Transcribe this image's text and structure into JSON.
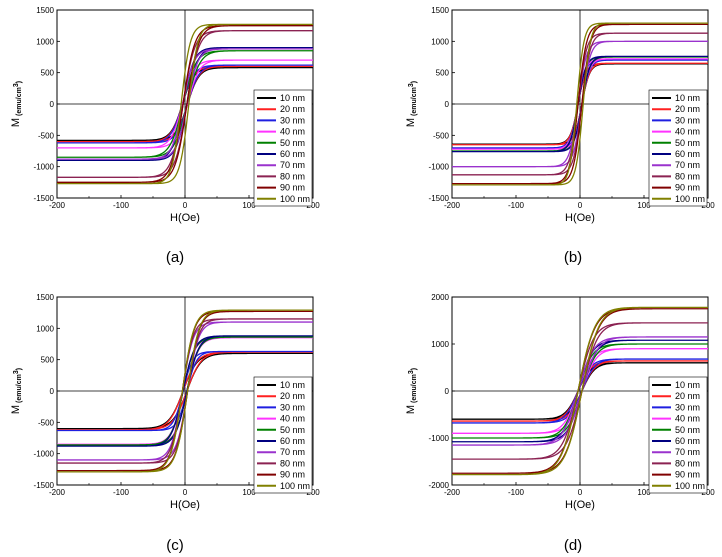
{
  "figure": {
    "colors": {
      "10 nm": "#000000",
      "20 nm": "#ff2020",
      "30 nm": "#1f1fe0",
      "40 nm": "#ff33ff",
      "50 nm": "#008000",
      "60 nm": "#000080",
      "70 nm": "#9a32cd",
      "80 nm": "#8b2252",
      "90 nm": "#800000",
      "100 nm": "#808000"
    }
  },
  "chart_data": [
    {
      "type": "line",
      "panel_label": "(a)",
      "xlabel": "H(Oe)",
      "ylabel": "M",
      "ylabel_unit": "(emu/cm",
      "ylabel_unit_sup": "3",
      "ylabel_unit_end": ")",
      "xlim": [
        -200,
        200
      ],
      "ylim": [
        -1500,
        1500
      ],
      "xticks": [
        -200,
        -100,
        0,
        100,
        200
      ],
      "yticks": [
        -1500,
        -1000,
        -500,
        0,
        500,
        1000,
        1500
      ],
      "legend_position": "bottom-right",
      "series": [
        {
          "name": "10 nm",
          "ms": 580,
          "hc": 4,
          "w": 18
        },
        {
          "name": "20 nm",
          "ms": 600,
          "hc": 4,
          "w": 18
        },
        {
          "name": "30 nm",
          "ms": 620,
          "hc": 4,
          "w": 18
        },
        {
          "name": "40 nm",
          "ms": 700,
          "hc": 4,
          "w": 18
        },
        {
          "name": "50 nm",
          "ms": 850,
          "hc": 3,
          "w": 20
        },
        {
          "name": "60 nm",
          "ms": 900,
          "hc": 3,
          "w": 17
        },
        {
          "name": "70 nm",
          "ms": 880,
          "hc": 3,
          "w": 17
        },
        {
          "name": "80 nm",
          "ms": 1170,
          "hc": 3,
          "w": 18
        },
        {
          "name": "90 nm",
          "ms": 1250,
          "hc": 3,
          "w": 18
        },
        {
          "name": "100 nm",
          "ms": 1270,
          "hc": 6,
          "w": 14
        }
      ]
    },
    {
      "type": "line",
      "panel_label": "(b)",
      "xlabel": "H(Oe)",
      "ylabel": "M",
      "ylabel_unit": "(emu/cm",
      "ylabel_unit_sup": "3",
      "ylabel_unit_end": ")",
      "xlim": [
        -200,
        200
      ],
      "ylim": [
        -1500,
        1500
      ],
      "xticks": [
        -200,
        -100,
        0,
        100,
        200
      ],
      "yticks": [
        -1500,
        -1000,
        -500,
        0,
        500,
        1000,
        1500
      ],
      "legend_position": "bottom-right",
      "series": [
        {
          "name": "10 nm",
          "ms": 640,
          "hc": 3,
          "w": 12
        },
        {
          "name": "20 nm",
          "ms": 650,
          "hc": 3,
          "w": 12
        },
        {
          "name": "30 nm",
          "ms": 700,
          "hc": 3,
          "w": 12
        },
        {
          "name": "40 nm",
          "ms": 720,
          "hc": 3,
          "w": 12
        },
        {
          "name": "50 nm",
          "ms": 750,
          "hc": 3,
          "w": 12
        },
        {
          "name": "60 nm",
          "ms": 760,
          "hc": 3,
          "w": 12
        },
        {
          "name": "70 nm",
          "ms": 1000,
          "hc": 3,
          "w": 13
        },
        {
          "name": "80 nm",
          "ms": 1130,
          "hc": 3,
          "w": 13
        },
        {
          "name": "90 nm",
          "ms": 1270,
          "hc": 3,
          "w": 13
        },
        {
          "name": "100 nm",
          "ms": 1290,
          "hc": 5,
          "w": 11
        }
      ]
    },
    {
      "type": "line",
      "panel_label": "(c)",
      "xlabel": "H(Oe)",
      "ylabel": "M",
      "ylabel_unit": "(emu/cm",
      "ylabel_unit_sup": "3",
      "ylabel_unit_end": ")",
      "xlim": [
        -200,
        200
      ],
      "ylim": [
        -1500,
        1500
      ],
      "xticks": [
        -200,
        -100,
        0,
        100,
        200
      ],
      "yticks": [
        -1500,
        -1000,
        -500,
        0,
        500,
        1000,
        1500
      ],
      "legend_position": "bottom-right",
      "series": [
        {
          "name": "10 nm",
          "ms": 600,
          "hc": 3,
          "w": 22
        },
        {
          "name": "20 nm",
          "ms": 620,
          "hc": 3,
          "w": 22
        },
        {
          "name": "30 nm",
          "ms": 630,
          "hc": 3,
          "w": 15
        },
        {
          "name": "40 nm",
          "ms": 850,
          "hc": 3,
          "w": 18
        },
        {
          "name": "50 nm",
          "ms": 860,
          "hc": 3,
          "w": 18
        },
        {
          "name": "60 nm",
          "ms": 880,
          "hc": 3,
          "w": 18
        },
        {
          "name": "70 nm",
          "ms": 1100,
          "hc": 4,
          "w": 17
        },
        {
          "name": "80 nm",
          "ms": 1150,
          "hc": 4,
          "w": 17
        },
        {
          "name": "90 nm",
          "ms": 1270,
          "hc": 4,
          "w": 18
        },
        {
          "name": "100 nm",
          "ms": 1290,
          "hc": 4,
          "w": 18
        }
      ]
    },
    {
      "type": "line",
      "panel_label": "(d)",
      "xlabel": "H(Oe)",
      "ylabel": "M",
      "ylabel_unit": "(emu/cm",
      "ylabel_unit_sup": "3",
      "ylabel_unit_end": ")",
      "xlim": [
        -200,
        200
      ],
      "ylim": [
        -2000,
        2000
      ],
      "xticks": [
        -200,
        -100,
        0,
        100,
        200
      ],
      "yticks": [
        -2000,
        -1000,
        0,
        1000,
        2000
      ],
      "legend_position": "bottom-right",
      "series": [
        {
          "name": "10 nm",
          "ms": 600,
          "hc": 3,
          "w": 20
        },
        {
          "name": "20 nm",
          "ms": 640,
          "hc": 3,
          "w": 20
        },
        {
          "name": "30 nm",
          "ms": 680,
          "hc": 3,
          "w": 20
        },
        {
          "name": "40 nm",
          "ms": 900,
          "hc": 3,
          "w": 22
        },
        {
          "name": "50 nm",
          "ms": 1000,
          "hc": 3,
          "w": 22
        },
        {
          "name": "60 nm",
          "ms": 1080,
          "hc": 3,
          "w": 22
        },
        {
          "name": "70 nm",
          "ms": 1150,
          "hc": 3,
          "w": 24
        },
        {
          "name": "80 nm",
          "ms": 1450,
          "hc": 3,
          "w": 24
        },
        {
          "name": "90 nm",
          "ms": 1750,
          "hc": 3,
          "w": 26
        },
        {
          "name": "100 nm",
          "ms": 1780,
          "hc": 3,
          "w": 26
        }
      ]
    }
  ]
}
